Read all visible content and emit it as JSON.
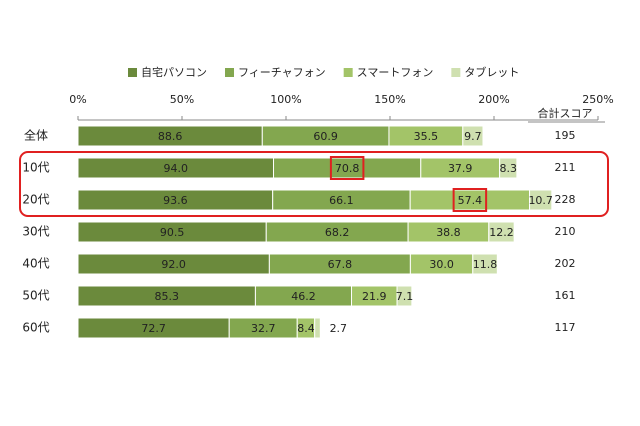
{
  "chart_data": {
    "type": "stacked-bar-horizontal",
    "categories": [
      "全体",
      "10代",
      "20代",
      "30代",
      "40代",
      "50代",
      "60代"
    ],
    "series": [
      {
        "name": "自宅パソコン",
        "color": "#6b8a3c",
        "values": [
          88.6,
          94.0,
          93.6,
          90.5,
          92.0,
          85.3,
          72.7
        ],
        "value_labels": [
          "88.6",
          "94.0",
          "93.6",
          "90.5",
          "92.0",
          "85.3",
          "72.7"
        ]
      },
      {
        "name": "フィーチャフォン",
        "color": "#83a74f",
        "values": [
          60.9,
          70.8,
          66.1,
          68.2,
          67.8,
          46.2,
          32.7
        ],
        "value_labels": [
          "60.9",
          "70.8",
          "66.1",
          "68.2",
          "67.8",
          "46.2",
          "32.7"
        ]
      },
      {
        "name": "スマートフォン",
        "color": "#a3c468",
        "values": [
          35.5,
          37.9,
          57.4,
          38.8,
          30.0,
          21.9,
          8.4
        ],
        "value_labels": [
          "35.5",
          "37.9",
          "57.4",
          "38.8",
          "30.0",
          "21.9",
          "8.4"
        ]
      },
      {
        "name": "タブレット",
        "color": "#cfe0b0",
        "values": [
          9.7,
          8.3,
          10.7,
          12.2,
          11.8,
          7.1,
          2.7
        ],
        "value_labels": [
          "9.7",
          "8.3",
          "10.7",
          "12.2",
          "11.8",
          "7.1",
          "2.7"
        ]
      }
    ],
    "total_header": "合計スコア",
    "totals": [
      195,
      211,
      228,
      210,
      202,
      161,
      117
    ],
    "xlim": [
      0,
      250
    ],
    "xticks": [
      {
        "value": 0,
        "label": "0%"
      },
      {
        "value": 50,
        "label": "50%"
      },
      {
        "value": 100,
        "label": "100%"
      },
      {
        "value": 150,
        "label": "150%"
      },
      {
        "value": 200,
        "label": "200%"
      },
      {
        "value": 250,
        "label": "250%"
      }
    ],
    "legend": "top",
    "highlighted_rows": [
      1,
      2
    ],
    "highlighted_points": [
      [
        1,
        1
      ],
      [
        2,
        2
      ]
    ],
    "highlight_color": "#e02020"
  }
}
